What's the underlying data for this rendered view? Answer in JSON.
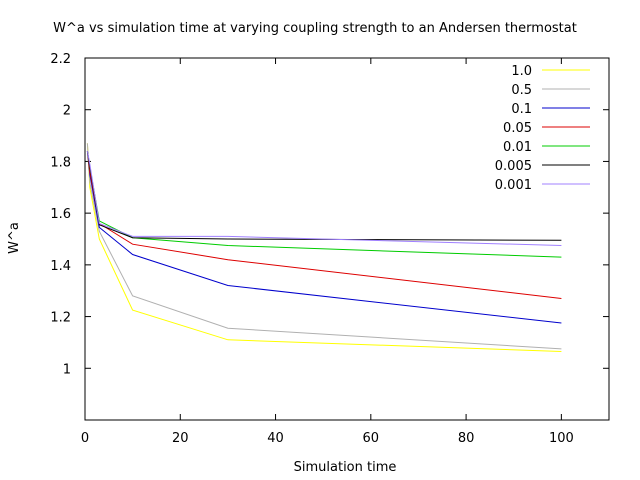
{
  "chart_data": {
    "type": "line",
    "title": "W^a vs simulation time at varying coupling strength to an Andersen thermostat",
    "xlabel": "Simulation time",
    "ylabel": "W^a",
    "xlim": [
      0,
      110
    ],
    "ylim": [
      0.8,
      2.2
    ],
    "xticks": [
      0,
      20,
      40,
      60,
      80,
      100
    ],
    "yticks": [
      1,
      1.2,
      1.4,
      1.6,
      1.8,
      2,
      2.2
    ],
    "xtick_labels": [
      "0",
      "20",
      "40",
      "60",
      "80",
      "100"
    ],
    "ytick_labels": [
      "1",
      "1.2",
      "1.4",
      "1.6",
      "1.8",
      "2",
      "2.2"
    ],
    "grid": false,
    "legend_position": "top-right",
    "series": [
      {
        "name": "1.0",
        "color": "#ffff00",
        "x": [
          0.5,
          1,
          3,
          10,
          30,
          100
        ],
        "y": [
          1.87,
          1.7,
          1.5,
          1.225,
          1.11,
          1.065
        ]
      },
      {
        "name": "0.5",
        "color": "#b0b0b0",
        "x": [
          0.5,
          1,
          3,
          10,
          30,
          100
        ],
        "y": [
          1.87,
          1.72,
          1.53,
          1.28,
          1.155,
          1.075
        ]
      },
      {
        "name": "0.1",
        "color": "#0000cc",
        "x": [
          0.5,
          1,
          3,
          10,
          30,
          100
        ],
        "y": [
          1.84,
          1.75,
          1.545,
          1.44,
          1.32,
          1.175
        ]
      },
      {
        "name": "0.05",
        "color": "#dd0000",
        "x": [
          0.5,
          1,
          3,
          10,
          30,
          100
        ],
        "y": [
          1.84,
          1.76,
          1.56,
          1.48,
          1.42,
          1.27
        ]
      },
      {
        "name": "0.01",
        "color": "#00cc00",
        "x": [
          0.5,
          1,
          3,
          10,
          30,
          100
        ],
        "y": [
          1.84,
          1.78,
          1.57,
          1.505,
          1.475,
          1.43
        ]
      },
      {
        "name": "0.005",
        "color": "#000000",
        "x": [
          0.5,
          1,
          3,
          10,
          30,
          100
        ],
        "y": [
          1.84,
          1.78,
          1.555,
          1.505,
          1.5,
          1.495
        ]
      },
      {
        "name": "0.001",
        "color": "#a080ff",
        "x": [
          0.5,
          1,
          3,
          10,
          30,
          100
        ],
        "y": [
          1.84,
          1.79,
          1.56,
          1.51,
          1.51,
          1.475
        ]
      }
    ]
  }
}
